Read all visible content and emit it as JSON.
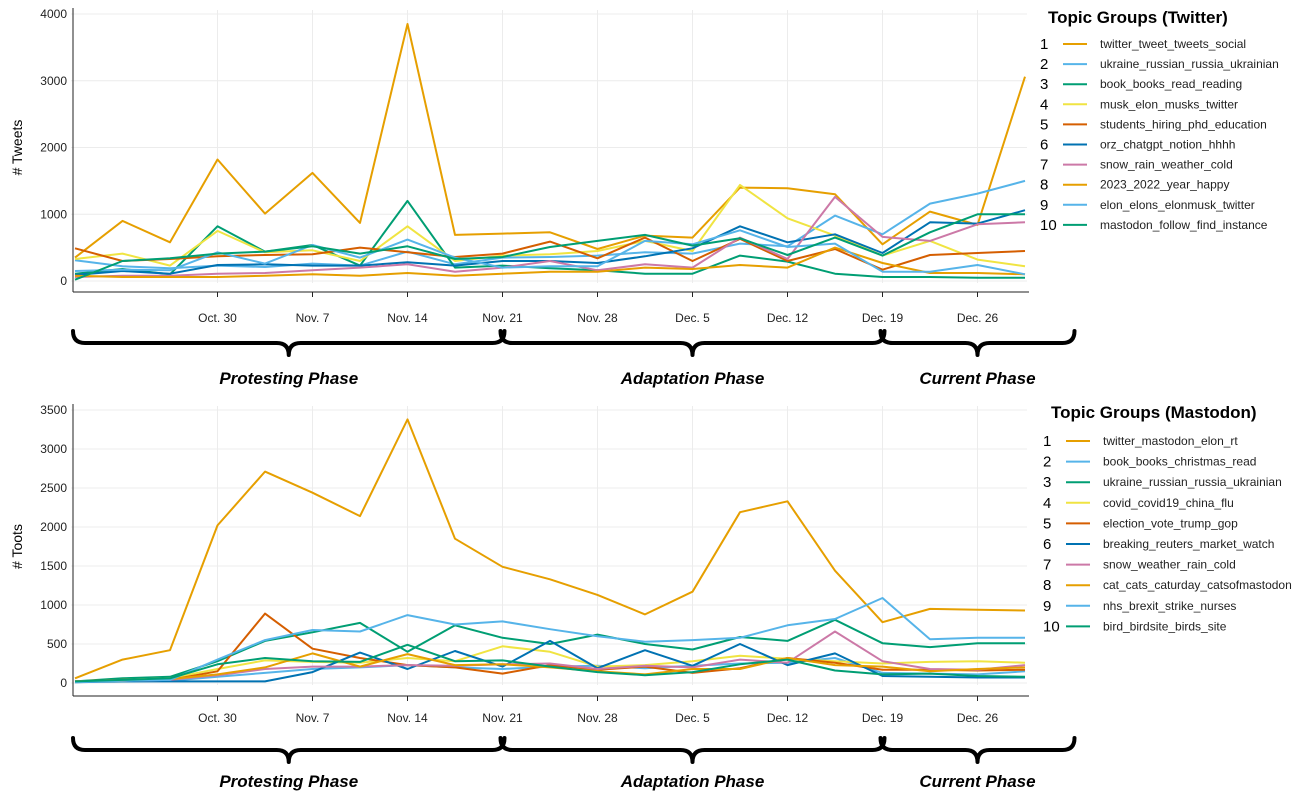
{
  "chart_data": [
    {
      "type": "line",
      "ylabel": "# Tweets",
      "ylim": [
        0,
        4000
      ],
      "yticks": [
        0,
        1000,
        2000,
        3000,
        4000
      ],
      "grid": true,
      "legend_title": "Topic Groups (Twitter)",
      "legend_position": "right",
      "xtick_labels": [
        "Oct. 30",
        "Nov. 7",
        "Nov. 14",
        "Nov. 21",
        "Nov. 28",
        "Dec. 5",
        "Dec. 12",
        "Dec. 19",
        "Dec. 26"
      ],
      "xtick_index": [
        3,
        5,
        7,
        9,
        11,
        13,
        15,
        17,
        19
      ],
      "phases": [
        {
          "label": "Protesting Phase",
          "from": 0,
          "to": 9
        },
        {
          "label": "Adaptation Phase",
          "from": 9,
          "to": 17
        },
        {
          "label": "Current Phase",
          "from": 17,
          "to": 21
        }
      ],
      "series": [
        {
          "num": "1",
          "name": "twitter_tweet_tweets_social",
          "color": "#E69F00",
          "values": [
            350,
            900,
            580,
            1820,
            1010,
            1620,
            870,
            3850,
            690,
            710,
            730,
            480,
            680,
            650,
            1400,
            1390,
            1300,
            550,
            1040,
            840,
            3060
          ]
        },
        {
          "num": "2",
          "name": "ukraine_russian_russia_ukrainian",
          "color": "#56B4E9",
          "values": [
            310,
            220,
            190,
            230,
            210,
            260,
            230,
            440,
            250,
            350,
            360,
            380,
            430,
            410,
            560,
            520,
            980,
            700,
            1160,
            1310,
            1500
          ]
        },
        {
          "num": "3",
          "name": "book_books_read_reading",
          "color": "#009E73",
          "values": [
            110,
            180,
            100,
            820,
            440,
            540,
            230,
            1200,
            200,
            230,
            190,
            160,
            110,
            110,
            380,
            290,
            110,
            60,
            60,
            50,
            50
          ]
        },
        {
          "num": "4",
          "name": "musk_elon_musks_twitter",
          "color": "#F0E442",
          "values": [
            330,
            410,
            230,
            750,
            430,
            460,
            300,
            820,
            300,
            380,
            400,
            450,
            600,
            450,
            1440,
            940,
            680,
            380,
            600,
            320,
            220
          ]
        },
        {
          "num": "5",
          "name": "students_hiring_phd_education",
          "color": "#D55E00",
          "values": [
            490,
            300,
            330,
            370,
            390,
            400,
            500,
            430,
            360,
            410,
            590,
            340,
            650,
            300,
            630,
            300,
            480,
            170,
            390,
            420,
            450
          ]
        },
        {
          "num": "6",
          "name": "orz_chatgpt_notion_hhhh",
          "color": "#0072B2",
          "values": [
            90,
            150,
            110,
            240,
            250,
            230,
            230,
            280,
            230,
            300,
            300,
            270,
            370,
            490,
            820,
            580,
            700,
            420,
            880,
            860,
            1060
          ]
        },
        {
          "num": "7",
          "name": "snow_rain_weather_cold",
          "color": "#CC79A7",
          "values": [
            60,
            80,
            80,
            110,
            120,
            160,
            200,
            250,
            140,
            200,
            300,
            160,
            250,
            200,
            650,
            330,
            1260,
            660,
            600,
            850,
            880
          ]
        },
        {
          "num": "8",
          "name": "2023_2022_year_happy",
          "color": "#E69F00",
          "values": [
            80,
            60,
            60,
            60,
            80,
            100,
            80,
            120,
            80,
            110,
            140,
            140,
            200,
            180,
            240,
            200,
            500,
            270,
            120,
            120,
            100
          ]
        },
        {
          "num": "9",
          "name": "elon_elons_elonmusk_twitter",
          "color": "#56B4E9",
          "values": [
            150,
            170,
            160,
            430,
            260,
            540,
            350,
            620,
            350,
            200,
            220,
            220,
            600,
            550,
            760,
            510,
            560,
            140,
            140,
            240,
            100
          ]
        },
        {
          "num": "10",
          "name": "mastodon_follow_find_instance",
          "color": "#009E73",
          "values": [
            20,
            300,
            340,
            410,
            440,
            520,
            410,
            520,
            330,
            360,
            510,
            600,
            690,
            530,
            640,
            390,
            650,
            380,
            730,
            1000,
            1000
          ]
        }
      ]
    },
    {
      "type": "line",
      "ylabel": "# Toots",
      "ylim": [
        0,
        3500
      ],
      "yticks": [
        0,
        500,
        1000,
        1500,
        2000,
        2500,
        3000,
        3500
      ],
      "grid": true,
      "legend_title": "Topic Groups (Mastodon)",
      "legend_position": "right",
      "xtick_labels": [
        "Oct. 30",
        "Nov. 7",
        "Nov. 14",
        "Nov. 21",
        "Nov. 28",
        "Dec. 5",
        "Dec. 12",
        "Dec. 19",
        "Dec. 26"
      ],
      "xtick_index": [
        3,
        5,
        7,
        9,
        11,
        13,
        15,
        17,
        19
      ],
      "phases": [
        {
          "label": "Protesting Phase",
          "from": 0,
          "to": 9
        },
        {
          "label": "Adaptation Phase",
          "from": 9,
          "to": 17
        },
        {
          "label": "Current Phase",
          "from": 17,
          "to": 21
        }
      ],
      "series": [
        {
          "num": "1",
          "name": "twitter_mastodon_elon_rt",
          "color": "#E69F00",
          "values": [
            60,
            300,
            420,
            2020,
            2710,
            2440,
            2140,
            3380,
            1850,
            1490,
            1330,
            1130,
            880,
            1170,
            2190,
            2330,
            1440,
            780,
            950,
            940,
            930
          ]
        },
        {
          "num": "2",
          "name": "book_books_christmas_read",
          "color": "#56B4E9",
          "values": [
            20,
            20,
            30,
            80,
            130,
            180,
            200,
            230,
            200,
            180,
            210,
            220,
            190,
            220,
            250,
            260,
            320,
            130,
            120,
            110,
            150
          ]
        },
        {
          "num": "3",
          "name": "ukraine_russian_russia_ukrainian",
          "color": "#009E73",
          "values": [
            20,
            60,
            80,
            280,
            540,
            650,
            770,
            400,
            740,
            580,
            500,
            620,
            500,
            430,
            590,
            540,
            810,
            510,
            460,
            510,
            510
          ]
        },
        {
          "num": "4",
          "name": "covid_covid19_china_flu",
          "color": "#F0E442",
          "values": [
            20,
            40,
            60,
            180,
            290,
            270,
            260,
            320,
            280,
            470,
            400,
            210,
            230,
            280,
            350,
            310,
            280,
            250,
            270,
            280,
            260
          ]
        },
        {
          "num": "5",
          "name": "election_vote_trump_gop",
          "color": "#D55E00",
          "values": [
            20,
            40,
            40,
            150,
            890,
            440,
            320,
            230,
            200,
            120,
            230,
            170,
            210,
            130,
            190,
            320,
            260,
            170,
            170,
            160,
            170
          ]
        },
        {
          "num": "6",
          "name": "breaking_reuters_market_watch",
          "color": "#0072B2",
          "values": [
            10,
            20,
            20,
            20,
            20,
            140,
            390,
            180,
            410,
            210,
            540,
            190,
            420,
            220,
            500,
            230,
            380,
            90,
            80,
            70,
            70
          ]
        },
        {
          "num": "7",
          "name": "snow_weather_rain_cold",
          "color": "#CC79A7",
          "values": [
            20,
            30,
            40,
            100,
            180,
            210,
            210,
            230,
            220,
            240,
            250,
            180,
            220,
            200,
            300,
            260,
            660,
            280,
            180,
            170,
            230
          ]
        },
        {
          "num": "8",
          "name": "cat_cats_caturday_catsofmastodon",
          "color": "#E69F00",
          "values": [
            20,
            30,
            50,
            110,
            200,
            380,
            210,
            370,
            230,
            240,
            200,
            150,
            110,
            180,
            180,
            320,
            230,
            210,
            150,
            180,
            200
          ]
        },
        {
          "num": "9",
          "name": "nhs_brexit_strike_nurses",
          "color": "#56B4E9",
          "values": [
            10,
            30,
            40,
            300,
            550,
            680,
            660,
            870,
            750,
            790,
            690,
            600,
            530,
            550,
            580,
            740,
            820,
            1090,
            560,
            580,
            580
          ]
        },
        {
          "num": "10",
          "name": "bird_birdsite_birds_site",
          "color": "#009E73",
          "values": [
            20,
            40,
            60,
            240,
            320,
            280,
            270,
            490,
            280,
            290,
            210,
            140,
            100,
            140,
            240,
            300,
            160,
            110,
            120,
            90,
            80
          ]
        }
      ]
    }
  ]
}
